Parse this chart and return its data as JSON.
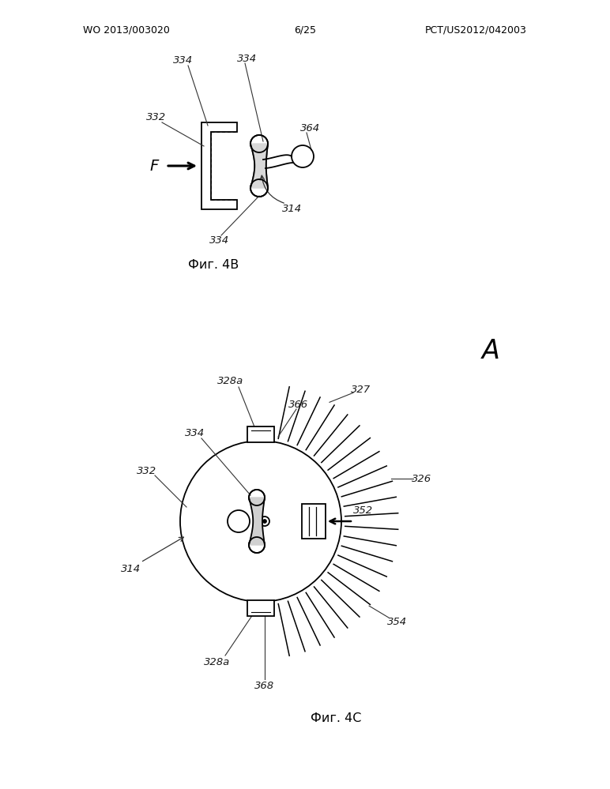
{
  "header_left": "WO 2013/003020",
  "header_center": "6/25",
  "header_right": "PCT/US2012/042003",
  "fig4b_caption": "Фиг. 4B",
  "fig4c_caption": "Фиг. 4C",
  "background_color": "#ffffff",
  "line_color": "#000000"
}
